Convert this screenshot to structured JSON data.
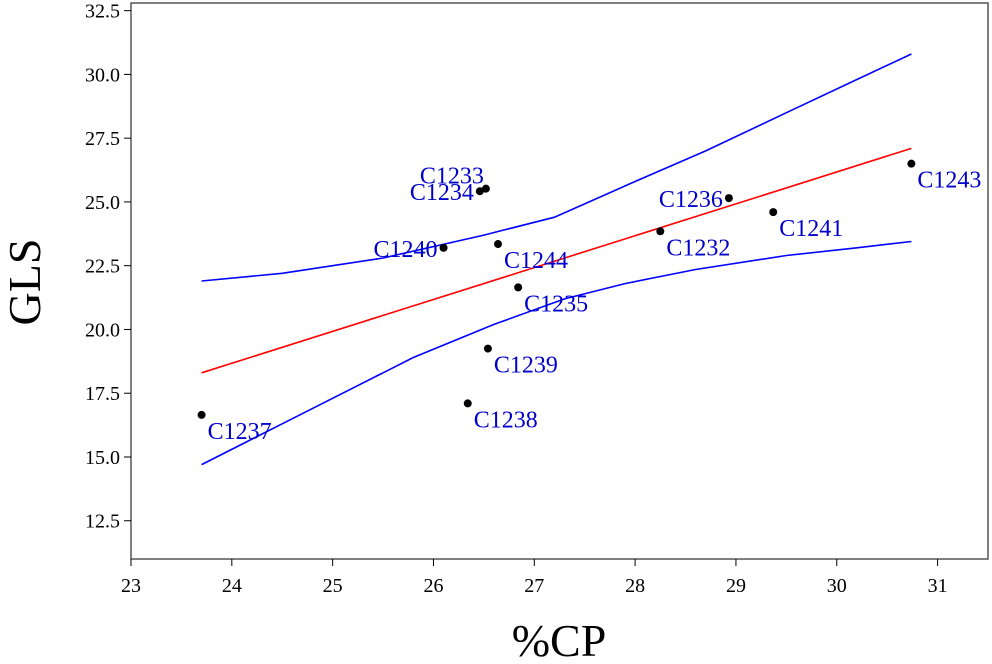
{
  "chart_data": {
    "type": "scatter",
    "title": "",
    "xlabel": "%CP",
    "ylabel": "GLS",
    "xlim": [
      23,
      31.5
    ],
    "ylim": [
      11,
      32.8
    ],
    "x_ticks": [
      23,
      24,
      25,
      26,
      27,
      28,
      29,
      30,
      31
    ],
    "y_ticks": [
      12.5,
      15.0,
      17.5,
      20.0,
      22.5,
      25.0,
      27.5,
      30.0,
      32.5
    ],
    "grid": false,
    "legend": "none",
    "colors": {
      "points": "#000000",
      "labels": "#0000cc",
      "fit": "#ff0000",
      "band": "#0000ff"
    },
    "points": [
      {
        "label": "C1233",
        "x": 26.52,
        "y": 25.52
      },
      {
        "label": "C1234",
        "x": 26.46,
        "y": 25.42
      },
      {
        "label": "C1240",
        "x": 26.1,
        "y": 23.2
      },
      {
        "label": "C1244",
        "x": 26.64,
        "y": 23.35
      },
      {
        "label": "C1235",
        "x": 26.84,
        "y": 21.65
      },
      {
        "label": "C1239",
        "x": 26.54,
        "y": 19.25
      },
      {
        "label": "C1238",
        "x": 26.34,
        "y": 17.1
      },
      {
        "label": "C1237",
        "x": 23.7,
        "y": 16.65
      },
      {
        "label": "C1236",
        "x": 28.93,
        "y": 25.15
      },
      {
        "label": "C1232",
        "x": 28.25,
        "y": 23.85
      },
      {
        "label": "C1241",
        "x": 29.37,
        "y": 24.6
      },
      {
        "label": "C1243",
        "x": 30.74,
        "y": 26.5
      }
    ],
    "fit_line": {
      "x": [
        23.7,
        30.74
      ],
      "y": [
        18.3,
        27.1
      ]
    },
    "upper_band": {
      "x": [
        23.7,
        24.5,
        25.5,
        26.5,
        27.2,
        28.0,
        28.7,
        29.5,
        30.2,
        30.74
      ],
      "y": [
        21.9,
        22.2,
        22.8,
        23.7,
        24.4,
        25.8,
        27.0,
        28.5,
        29.8,
        30.8
      ]
    },
    "lower_band": {
      "x": [
        23.7,
        24.5,
        25.8,
        26.6,
        27.3,
        27.9,
        28.6,
        29.5,
        30.2,
        30.74
      ],
      "y": [
        14.7,
        16.3,
        18.9,
        20.2,
        21.2,
        21.8,
        22.35,
        22.9,
        23.2,
        23.45
      ]
    },
    "label_positions": {
      "C1233": "above-left",
      "C1234": "left",
      "C1240": "left",
      "C1244": "below-right",
      "C1235": "below-right",
      "C1239": "below-right",
      "C1238": "below-right",
      "C1237": "below-right",
      "C1236": "left",
      "C1232": "below-right",
      "C1241": "below-right",
      "C1243": "below-right"
    }
  }
}
